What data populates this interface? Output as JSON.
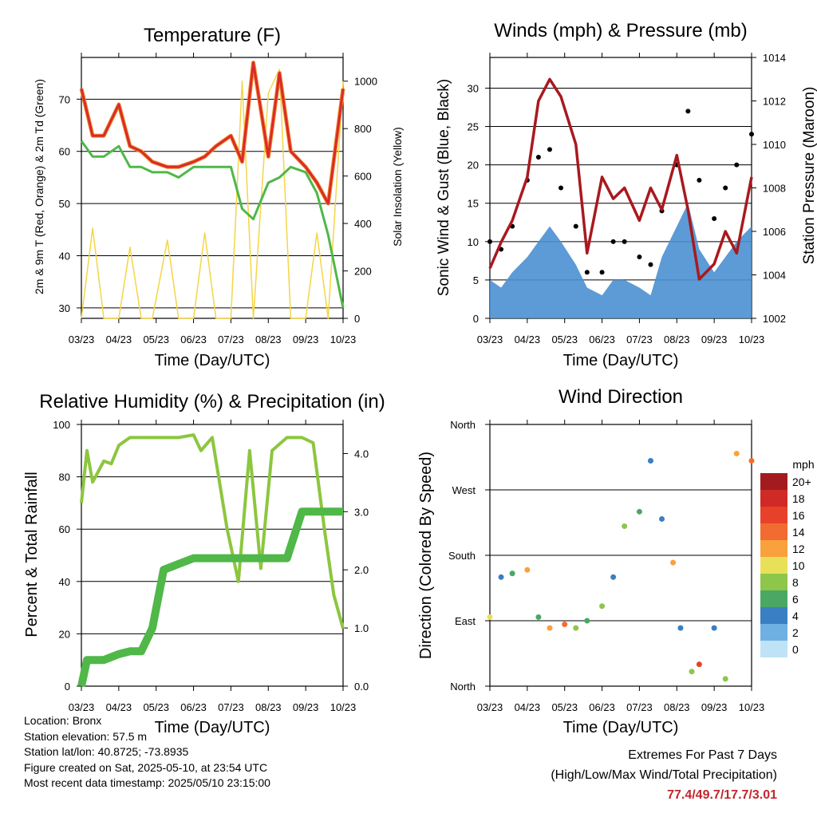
{
  "panels": {
    "temperature": {
      "title": "Temperature (F)",
      "ylabel_left": "2m & 9m T (Red, Orange) & 2m Td (Green)",
      "ylabel_right": "Solar Insolation (Yellow)",
      "xlabel": "Time (Day/UTC)"
    },
    "winds": {
      "title": "Winds (mph) & Pressure (mb)",
      "ylabel_left": "Sonic Wind & Gust (Blue, Black)",
      "ylabel_right": "Station Pressure (Maroon)",
      "xlabel": "Time (Day/UTC)"
    },
    "humidity": {
      "title": "Relative Humidity (%) & Precipitation (in)",
      "ylabel_left": "Percent & Total Rainfall",
      "xlabel": "Time (Day/UTC)"
    },
    "direction": {
      "title": "Wind Direction",
      "ylabel_left": "Direction (Colored By Speed)",
      "xlabel": "Time (Day/UTC)",
      "y_ticks": [
        "North",
        "East",
        "South",
        "West",
        "North"
      ],
      "legend_title": "mph",
      "legend_labels": [
        "20+",
        "18",
        "16",
        "14",
        "12",
        "10",
        "8",
        "6",
        "4",
        "2",
        "0"
      ],
      "legend_colors": [
        "#a31b1f",
        "#cf2a26",
        "#e8412a",
        "#f26b30",
        "#f9a13c",
        "#e8e157",
        "#8ec64b",
        "#4aa864",
        "#3a7fc2",
        "#6fb0e2",
        "#bfe3f6"
      ]
    }
  },
  "info": {
    "location": "Location: Bronx",
    "elevation": "Station elevation: 57.5 m",
    "latlon": "Station lat/lon: 40.8725; -73.8935",
    "created": "Figure created on Sat, 2025-05-10, at 23:54 UTC",
    "recent": "Most recent data timestamp: 2025/05/10 23:15:00"
  },
  "extremes": {
    "line1": "Extremes For Past 7 Days",
    "line2": "(High/Low/Max Wind/Total Precipitation)",
    "values": "77.4/49.7/17.7/3.01"
  },
  "chart_data": [
    {
      "type": "line",
      "title": "Temperature (F)",
      "xlabel": "Time (Day/UTC)",
      "ylabel": "2m & 9m T (Red, Orange) & 2m Td (Green)",
      "ylabel_right": "Solar Insolation (Yellow)",
      "x_ticks": [
        "03/23",
        "04/23",
        "05/23",
        "06/23",
        "07/23",
        "08/23",
        "09/23",
        "10/23"
      ],
      "ylim": [
        28,
        78
      ],
      "y_ticks": [
        30,
        40,
        50,
        60,
        70
      ],
      "y2lim": [
        0,
        1100
      ],
      "y2_ticks": [
        0,
        200,
        400,
        600,
        800,
        1000
      ],
      "grid": true,
      "colors": {
        "temp": "#d92b2b",
        "temp9m": "#f28c28",
        "dewpoint": "#4fb848",
        "solar": "#f5d547"
      },
      "x": [
        0,
        0.3,
        0.6,
        1.0,
        1.3,
        1.6,
        1.9,
        2.3,
        2.6,
        3.0,
        3.3,
        3.6,
        4.0,
        4.3,
        4.6,
        5.0,
        5.3,
        5.6,
        6.0,
        6.3,
        6.6,
        7.0
      ],
      "series": [
        {
          "values": [
            72,
            63,
            63,
            69,
            61,
            60,
            58,
            57,
            57,
            58,
            59,
            61,
            63,
            58,
            77,
            59,
            75,
            60,
            57,
            54,
            50,
            72
          ]
        },
        {
          "values": [
            62,
            59,
            59,
            61,
            57,
            57,
            56,
            56,
            55,
            57,
            57,
            57,
            57,
            49,
            47,
            54,
            55,
            57,
            56,
            52,
            44,
            30
          ]
        },
        {
          "values": [
            0,
            380,
            0,
            0,
            300,
            0,
            0,
            330,
            0,
            0,
            360,
            0,
            0,
            1000,
            0,
            950,
            1050,
            0,
            0,
            360,
            0,
            1000
          ]
        }
      ]
    },
    {
      "type": "line",
      "title": "Winds (mph) & Pressure (mb)",
      "xlabel": "Time (Day/UTC)",
      "ylabel": "Sonic Wind & Gust (Blue, Black)",
      "ylabel_right": "Station Pressure (Maroon)",
      "x_ticks": [
        "03/23",
        "04/23",
        "05/23",
        "06/23",
        "07/23",
        "08/23",
        "09/23",
        "10/23"
      ],
      "ylim": [
        0,
        34
      ],
      "y_ticks": [
        0,
        5,
        10,
        15,
        20,
        25,
        30
      ],
      "y2lim": [
        1002,
        1014
      ],
      "y2_ticks": [
        1002,
        1004,
        1006,
        1008,
        1010,
        1012,
        1014
      ],
      "grid": true,
      "colors": {
        "wind": "#4a90d2",
        "gust": "#000000",
        "pressure": "#a8191f"
      },
      "x": [
        0,
        0.3,
        0.6,
        1.0,
        1.3,
        1.6,
        1.9,
        2.3,
        2.6,
        3.0,
        3.3,
        3.6,
        4.0,
        4.3,
        4.6,
        5.0,
        5.3,
        5.6,
        6.0,
        6.3,
        6.6,
        7.0
      ],
      "series": [
        {
          "values": [
            5,
            4,
            6,
            8,
            10,
            12,
            10,
            7,
            4,
            3,
            5,
            5,
            4,
            3,
            8,
            12,
            15,
            9,
            6,
            8,
            10,
            12
          ]
        },
        {
          "values": [
            10,
            9,
            12,
            18,
            21,
            22,
            17,
            12,
            6,
            6,
            10,
            10,
            8,
            7,
            14,
            20,
            27,
            18,
            13,
            17,
            20,
            24
          ]
        },
        {
          "values": [
            1004.3,
            1005.5,
            1006.5,
            1008.5,
            1012.0,
            1013.0,
            1012.2,
            1010.0,
            1005.0,
            1008.5,
            1007.5,
            1008.0,
            1006.5,
            1008.0,
            1007.0,
            1009.5,
            1007.0,
            1003.8,
            1004.5,
            1006.0,
            1005.0,
            1008.5
          ]
        }
      ]
    },
    {
      "type": "line",
      "title": "Relative Humidity (%) & Precipitation (in)",
      "xlabel": "Time (Day/UTC)",
      "ylabel": "Percent & Total Rainfall",
      "x_ticks": [
        "03/23",
        "04/23",
        "05/23",
        "06/23",
        "07/23",
        "08/23",
        "09/23",
        "10/23"
      ],
      "ylim": [
        0,
        100
      ],
      "y_ticks": [
        0,
        20,
        40,
        60,
        80,
        100
      ],
      "y2lim": [
        0,
        4.5
      ],
      "y2_ticks": [
        "0.0",
        "1.0",
        "2.0",
        "3.0",
        "4.0"
      ],
      "grid": true,
      "colors": {
        "rh": "#8cc63f",
        "precip": "#4fb848"
      },
      "x": [
        0,
        0.15,
        0.3,
        0.6,
        0.8,
        1.0,
        1.3,
        1.6,
        1.9,
        2.2,
        2.6,
        3.0,
        3.2,
        3.5,
        3.9,
        4.2,
        4.5,
        4.8,
        5.1,
        5.5,
        5.9,
        6.2,
        6.5,
        6.75,
        7.0
      ],
      "series": [
        {
          "values": [
            70,
            90,
            78,
            86,
            85,
            92,
            95,
            95,
            95,
            95,
            95,
            96,
            90,
            95,
            60,
            40,
            90,
            45,
            90,
            95,
            95,
            93,
            60,
            35,
            22
          ]
        },
        {
          "values": [
            0,
            0.45,
            0.45,
            0.45,
            0.5,
            0.55,
            0.6,
            0.6,
            1.0,
            2.0,
            2.1,
            2.2,
            2.2,
            2.2,
            2.2,
            2.2,
            2.2,
            2.2,
            2.2,
            2.2,
            3.0,
            3.0,
            3.0,
            3.0,
            3.0
          ]
        }
      ]
    },
    {
      "type": "scatter",
      "title": "Wind Direction",
      "xlabel": "Time (Day/UTC)",
      "ylabel": "Direction (Colored By Speed)",
      "x_ticks": [
        "03/23",
        "04/23",
        "05/23",
        "06/23",
        "07/23",
        "08/23",
        "09/23",
        "10/23"
      ],
      "y_ticks": [
        "North",
        "East",
        "South",
        "West",
        "North"
      ],
      "ylim": [
        0,
        360
      ],
      "grid": true,
      "legend": "right",
      "x": [
        0,
        0.3,
        0.6,
        1.0,
        1.3,
        1.6,
        2.0,
        2.3,
        2.6,
        3.0,
        3.3,
        3.6,
        4.0,
        4.3,
        4.6,
        4.9,
        5.1,
        5.4,
        5.6,
        6.0,
        6.3,
        6.6,
        7.0
      ],
      "values": [
        95,
        150,
        155,
        160,
        95,
        80,
        85,
        80,
        90,
        110,
        150,
        220,
        240,
        310,
        230,
        170,
        80,
        20,
        30,
        80,
        10,
        320,
        310
      ],
      "speeds": [
        10,
        4,
        6,
        12,
        6,
        12,
        14,
        8,
        6,
        8,
        4,
        8,
        6,
        4,
        4,
        12,
        4,
        8,
        16,
        4,
        8,
        12,
        14
      ]
    }
  ]
}
